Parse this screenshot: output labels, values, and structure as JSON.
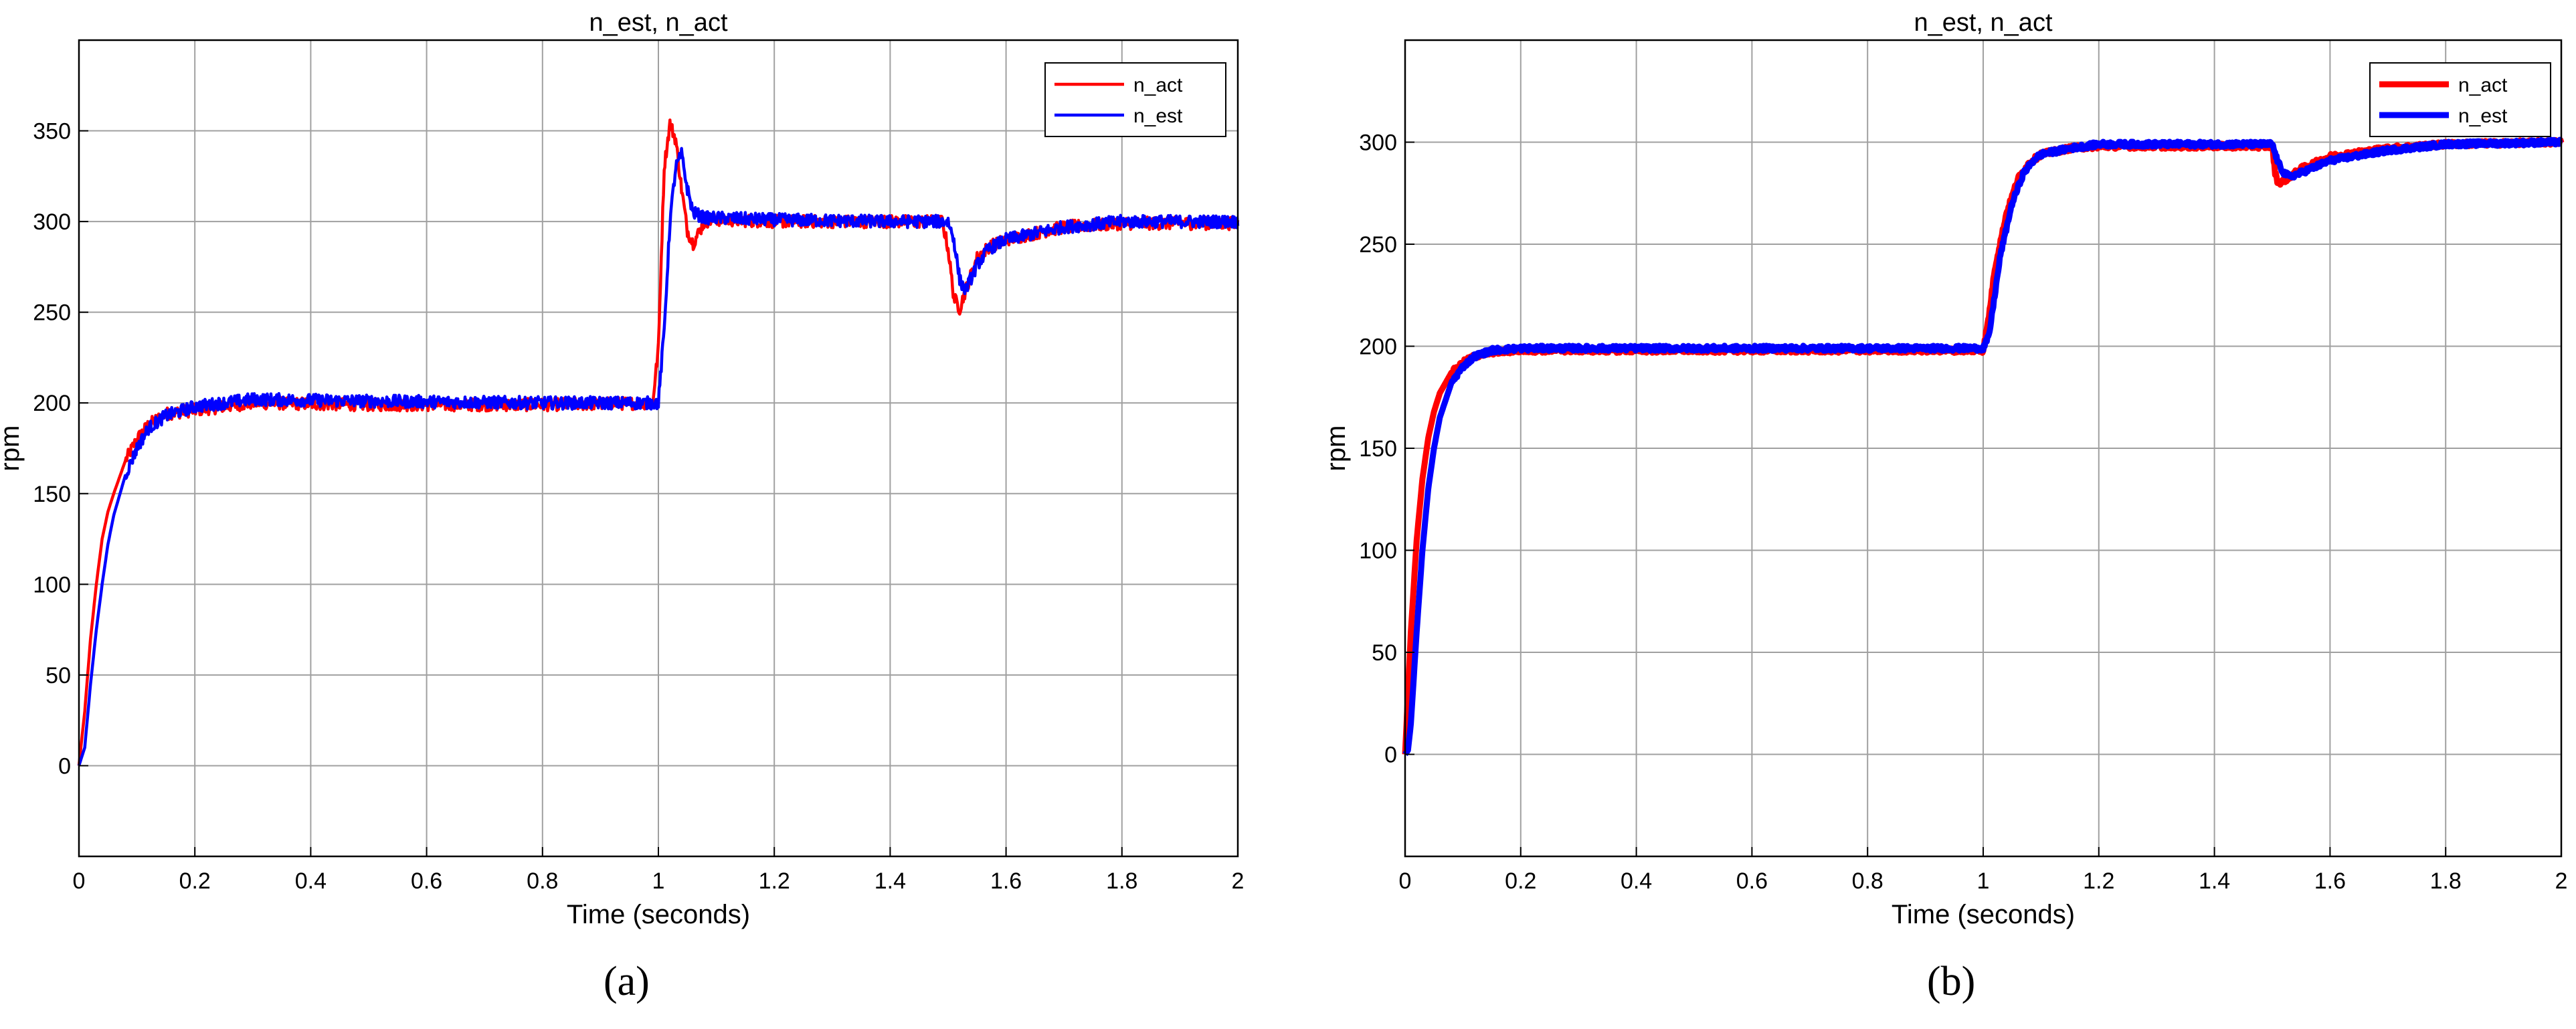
{
  "colors": {
    "act": "#ff0000",
    "est": "#0000ff",
    "grid": "#a0a0a0",
    "axis": "#000000"
  },
  "chart_data": [
    {
      "type": "line",
      "panel_label": "(a)",
      "title": "n_est, n_act",
      "xlabel": "Time (seconds)",
      "ylabel": "rpm",
      "xlim": [
        0,
        2
      ],
      "ylim": [
        -50,
        400
      ],
      "xticks": [
        0,
        0.2,
        0.4,
        0.6,
        0.8,
        1,
        1.2,
        1.4,
        1.6,
        1.8,
        2
      ],
      "yticks": [
        0,
        50,
        100,
        150,
        200,
        250,
        300,
        350
      ],
      "grid": true,
      "legend_position": "top-right",
      "line_style": "thin",
      "series": [
        {
          "name": "n_act",
          "color": "#ff0000",
          "x": [
            0,
            0.01,
            0.02,
            0.03,
            0.04,
            0.05,
            0.06,
            0.08,
            0.1,
            0.12,
            0.15,
            0.2,
            0.3,
            0.5,
            0.8,
            0.99,
            1.0,
            1.01,
            1.02,
            1.03,
            1.04,
            1.05,
            1.06,
            1.08,
            1.1,
            1.2,
            1.4,
            1.49,
            1.5,
            1.51,
            1.52,
            1.53,
            1.55,
            1.57,
            1.6,
            1.7,
            1.8,
            2.0
          ],
          "y": [
            0,
            30,
            70,
            100,
            125,
            140,
            150,
            168,
            180,
            188,
            194,
            196,
            200,
            199,
            199,
            200,
            230,
            330,
            354,
            345,
            318,
            295,
            288,
            300,
            301,
            300,
            300,
            300,
            285,
            258,
            252,
            262,
            280,
            286,
            290,
            297,
            299,
            299
          ]
        },
        {
          "name": "n_est",
          "color": "#0000ff",
          "x": [
            0,
            0.01,
            0.02,
            0.03,
            0.04,
            0.05,
            0.06,
            0.08,
            0.1,
            0.12,
            0.15,
            0.2,
            0.3,
            0.5,
            0.8,
            1.0,
            1.01,
            1.02,
            1.03,
            1.04,
            1.05,
            1.06,
            1.08,
            1.1,
            1.2,
            1.4,
            1.5,
            1.51,
            1.52,
            1.53,
            1.55,
            1.57,
            1.6,
            1.7,
            1.8,
            2.0
          ],
          "y": [
            0,
            10,
            45,
            75,
            100,
            122,
            138,
            160,
            175,
            186,
            193,
            198,
            202,
            201,
            200,
            200,
            240,
            300,
            330,
            337,
            318,
            305,
            302,
            302,
            301,
            300,
            300,
            290,
            268,
            262,
            276,
            285,
            290,
            297,
            300,
            300
          ]
        }
      ]
    },
    {
      "type": "line",
      "panel_label": "(b)",
      "title": "n_est, n_act",
      "xlabel": "Time (seconds)",
      "ylabel": "rpm",
      "xlim": [
        0,
        2
      ],
      "ylim": [
        -50,
        350
      ],
      "xticks": [
        0,
        0.2,
        0.4,
        0.6,
        0.8,
        1,
        1.2,
        1.4,
        1.6,
        1.8,
        2
      ],
      "yticks": [
        0,
        50,
        100,
        150,
        200,
        250,
        300
      ],
      "grid": true,
      "legend_position": "top-right",
      "line_style": "thick",
      "series": [
        {
          "name": "n_act",
          "color": "#ff0000",
          "x": [
            0,
            0.005,
            0.01,
            0.02,
            0.03,
            0.04,
            0.05,
            0.06,
            0.08,
            0.1,
            0.12,
            0.15,
            0.2,
            0.5,
            0.8,
            0.99,
            1.0,
            1.01,
            1.02,
            1.04,
            1.06,
            1.08,
            1.1,
            1.15,
            1.2,
            1.4,
            1.5,
            1.505,
            1.51,
            1.52,
            1.55,
            1.6,
            1.7,
            1.8,
            2.0
          ],
          "y": [
            0,
            30,
            60,
            105,
            135,
            155,
            168,
            177,
            187,
            192,
            195,
            197,
            198,
            198,
            198,
            198,
            198,
            215,
            238,
            265,
            282,
            290,
            294,
            297,
            298,
            298,
            298,
            285,
            280,
            281,
            287,
            293,
            297,
            299,
            300
          ]
        },
        {
          "name": "n_est",
          "color": "#0000ff",
          "x": [
            0,
            0.005,
            0.01,
            0.02,
            0.03,
            0.04,
            0.05,
            0.06,
            0.08,
            0.1,
            0.12,
            0.15,
            0.2,
            0.5,
            0.8,
            1.0,
            1.01,
            1.02,
            1.03,
            1.05,
            1.07,
            1.09,
            1.1,
            1.15,
            1.2,
            1.4,
            1.5,
            1.51,
            1.52,
            1.53,
            1.55,
            1.6,
            1.7,
            1.8,
            2.0
          ],
          "y": [
            0,
            2,
            15,
            60,
            100,
            130,
            150,
            165,
            182,
            190,
            195,
            198,
            199,
            199,
            199,
            199,
            205,
            225,
            245,
            270,
            285,
            292,
            294,
            297,
            299,
            299,
            299,
            290,
            285,
            283,
            285,
            291,
            296,
            299,
            300
          ]
        }
      ]
    }
  ]
}
